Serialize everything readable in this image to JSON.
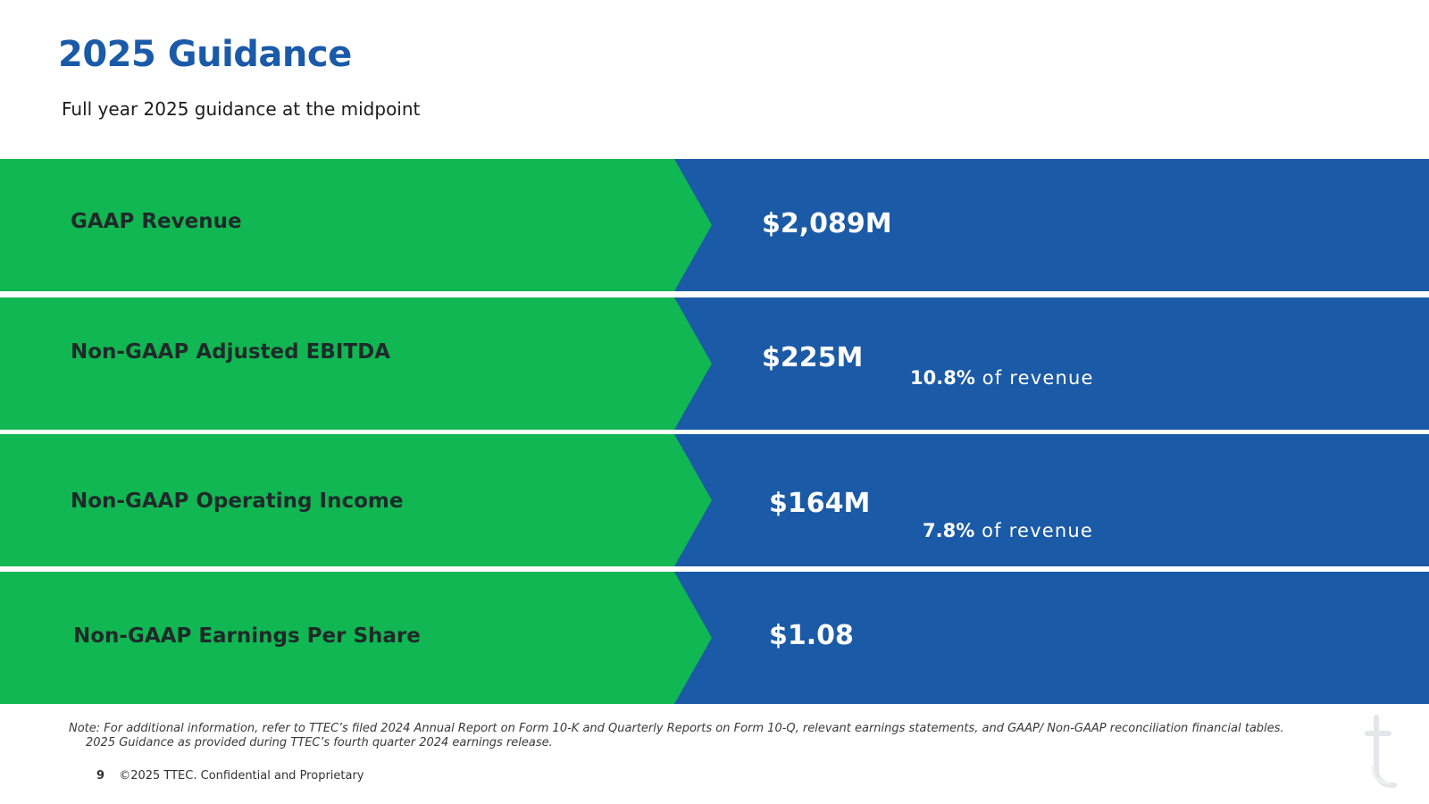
{
  "header": {
    "title": "2025 Guidance",
    "subtitle": "Full year 2025 guidance at the midpoint"
  },
  "metrics": [
    {
      "label": "GAAP Revenue",
      "value": "$2,089M",
      "pct_value": "",
      "pct_suffix": ""
    },
    {
      "label": "Non-GAAP Adjusted EBITDA",
      "value": "$225M",
      "pct_value": "10.8%",
      "pct_suffix": " of revenue"
    },
    {
      "label": "Non-GAAP Operating Income",
      "value": "$164M",
      "pct_value": "7.8%",
      "pct_suffix": " of revenue"
    },
    {
      "label": "Non-GAAP Earnings Per Share",
      "value": "$1.08",
      "pct_value": "",
      "pct_suffix": ""
    }
  ],
  "note": {
    "line1": "Note: For additional information, refer to TTEC’s filed 2024 Annual Report on Form 10-K and Quarterly Reports on Form 10-Q, relevant earnings statements, and GAAP/ Non-GAAP reconciliation financial tables.",
    "line2": "2025 Guidance as provided during TTEC’s fourth quarter 2024 earnings release."
  },
  "footer": {
    "page_number": "9",
    "copyright": "©2025 TTEC. Confidential and Proprietary"
  },
  "logo": {
    "icon": "ttec-t-logo-icon"
  },
  "colors": {
    "title_blue": "#1a5aa8",
    "band_green": "#11b752",
    "band_blue": "#1b5aa6"
  }
}
